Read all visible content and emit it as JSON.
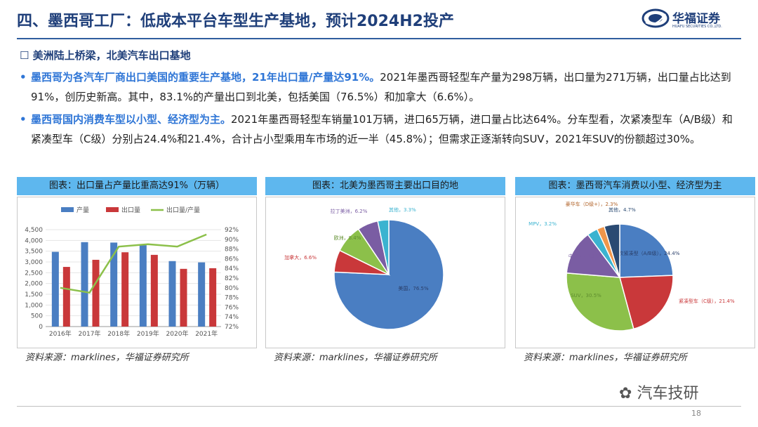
{
  "header": {
    "title": "四、墨西哥工厂：低成本平台车型生产基地，预计2024H2投产",
    "logo_name": "华福证券",
    "logo_sub": "HUAFU SECURITIES CO.,LTD."
  },
  "section": {
    "title": "☐ 美洲陆上桥梁，北美汽车出口基地"
  },
  "bullets": [
    {
      "highlight": "墨西哥为各汽车厂商出口美国的重要生产基地，21年出口量/产量达91%。",
      "text": "2021年墨西哥轻型车产量为298万辆，出口量为271万辆，出口量占比达到91%，创历史新高。其中，83.1%的产量出口到北美，包括美国（76.5%）和加拿大（6.6%）。"
    },
    {
      "highlight": "墨西哥国内消费车型以小型、经济型为主。",
      "text": "2021年墨西哥轻型车销量101万辆，进口65万辆，进口量占比达64%。分车型看，次紧凑型车（A/B级）和紧凑型车（C级）分别占24.4%和21.4%，合计占小型乘用车市场的近一半（45.8%）；但需求正逐渐转向SUV，2021年SUV的份额超过30%。"
    }
  ],
  "panels": [
    {
      "title": "图表：出口量占产量比重高达91%（万辆）",
      "source": "资料来源：marklines，华福证券研究所"
    },
    {
      "title": "图表：北美为墨西哥主要出口目的地",
      "source": "资料来源：marklines，华福证券研究所"
    },
    {
      "title": "图表：墨西哥汽车消费以小型、经济型为主",
      "source": "资料来源：marklines，华福证券研究所"
    }
  ],
  "chart_data": [
    {
      "type": "bar",
      "categories": [
        "2016年",
        "2017年",
        "2018年",
        "2019年",
        "2020年",
        "2021年"
      ],
      "series": [
        {
          "name": "产量",
          "values": [
            3470,
            3920,
            3900,
            3780,
            3040,
            2980
          ],
          "color": "#4a7ec2"
        },
        {
          "name": "出口量",
          "values": [
            2770,
            3100,
            3450,
            3330,
            2680,
            2710
          ],
          "color": "#c9383a"
        },
        {
          "name": "出口量/产量",
          "values": [
            0.8,
            0.79,
            0.885,
            0.89,
            0.885,
            0.91
          ],
          "color": "#8cc04a",
          "axis": "right",
          "kind": "line"
        }
      ],
      "ylim": [
        0,
        4500
      ],
      "yticks": [
        "0",
        "500",
        "1,000",
        "1,500",
        "2,000",
        "2,500",
        "3,000",
        "3,500",
        "4,000",
        "4,500"
      ],
      "y2lim": [
        0.72,
        0.92
      ],
      "y2ticks": [
        "72%",
        "74%",
        "76%",
        "78%",
        "80%",
        "82%",
        "84%",
        "86%",
        "88%",
        "90%",
        "92%"
      ],
      "legend": "top"
    },
    {
      "type": "pie",
      "slices": [
        {
          "label": "美国，76.5%",
          "value": 76.5,
          "color": "#4a7ec2"
        },
        {
          "label": "加拿大，6.6%",
          "value": 6.6,
          "color": "#c9383a"
        },
        {
          "label": "欧洲，8.4%",
          "value": 8.4,
          "color": "#8cc04a"
        },
        {
          "label": "拉丁美洲，6.2%",
          "value": 6.2,
          "color": "#7a5da3"
        },
        {
          "label": "其他，3.3%",
          "value": 3.3,
          "color": "#3bb3d0"
        }
      ]
    },
    {
      "type": "pie",
      "slices": [
        {
          "label": "次紧凑型（A/B级），24.4%",
          "value": 24.4,
          "color": "#4a7ec2"
        },
        {
          "label": "紧凑型车（C级），21.4%",
          "value": 21.4,
          "color": "#c9383a"
        },
        {
          "label": "SUV，30.5%",
          "value": 30.5,
          "color": "#8cc04a"
        },
        {
          "label": "中型车，13.5%",
          "value": 13.5,
          "color": "#7a5da3"
        },
        {
          "label": "MPV，3.2%",
          "value": 3.2,
          "color": "#3bb3d0"
        },
        {
          "label": "豪华车（D级+），2.3%",
          "value": 2.3,
          "color": "#f0964a"
        },
        {
          "label": "其他，4.7%",
          "value": 4.7,
          "color": "#2a4a72"
        }
      ]
    }
  ],
  "footer": {
    "page": "18",
    "watermark": "汽车技研"
  }
}
